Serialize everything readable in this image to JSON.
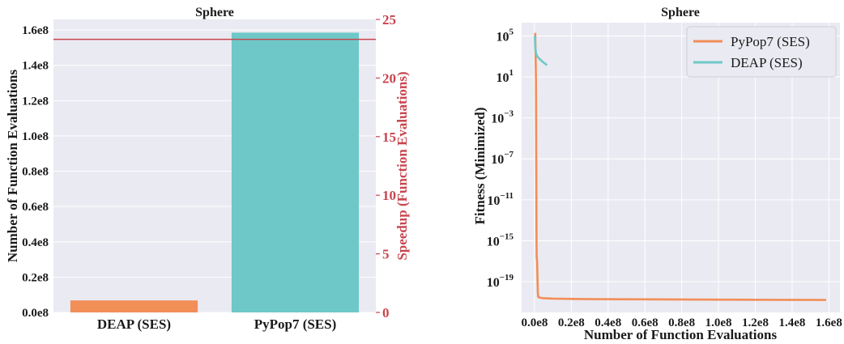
{
  "colors": {
    "plot_bg": "#eaeaf2",
    "grid": "#ffffff",
    "pypop7": "#f28e58",
    "deap": "#6fc8c8",
    "speedup": "#c8454e",
    "text": "#1a1a1a"
  },
  "chart_data": [
    {
      "type": "bar",
      "title": "Sphere",
      "categories": [
        "DEAP (SES)",
        "PyPop7 (SES)"
      ],
      "values": [
        6800000.0,
        158500000.0
      ],
      "bar_colors": [
        "#f28e58",
        "#6fc8c8"
      ],
      "ylabel": "Number of Function Evaluations",
      "ylim": [
        0,
        166000000.0
      ],
      "yticks": [
        0,
        20000000.0,
        40000000.0,
        60000000.0,
        80000000.0,
        100000000.0,
        120000000.0,
        140000000.0,
        160000000.0
      ],
      "ytick_labels": [
        "0.0e8",
        "0.2e8",
        "0.4e8",
        "0.6e8",
        "0.8e8",
        "1.0e8",
        "1.2e8",
        "1.4e8",
        "1.6e8"
      ],
      "secondary_axis": {
        "label": "Speedup (Function Evaluations)",
        "ylim": [
          0,
          25
        ],
        "ticks": [
          0,
          5,
          10,
          15,
          20,
          25
        ],
        "tick_labels": [
          "0",
          "5",
          "10",
          "15",
          "20",
          "25"
        ],
        "speedup_value": 23.3
      },
      "grid": true
    },
    {
      "type": "line",
      "title": "Sphere",
      "xlabel": "Number of Function Evaluations",
      "ylabel": "Fitness (Minimized)",
      "xlim": [
        -7000000.0,
        166000000.0
      ],
      "xticks": [
        0,
        20000000.0,
        40000000.0,
        60000000.0,
        80000000.0,
        100000000.0,
        120000000.0,
        140000000.0,
        160000000.0
      ],
      "xtick_labels": [
        "0.0e8",
        "0.2e8",
        "0.4e8",
        "0.6e8",
        "0.8e8",
        "1.0e8",
        "1.2e8",
        "1.4e8",
        "1.6e8"
      ],
      "yscale": "log",
      "ylim_log10": [
        -22,
        6.3
      ],
      "yticks_log10": [
        5,
        1,
        -3,
        -7,
        -11,
        -15,
        -19
      ],
      "ytick_labels": [
        {
          "base": "10",
          "exp": "5"
        },
        {
          "base": "10",
          "exp": "1"
        },
        {
          "base": "10",
          "exp": "−3"
        },
        {
          "base": "10",
          "exp": "−7"
        },
        {
          "base": "10",
          "exp": "−11"
        },
        {
          "base": "10",
          "exp": "−15"
        },
        {
          "base": "10",
          "exp": "−19"
        }
      ],
      "legend": {
        "placement": "top-right",
        "entries": [
          "PyPop7 (SES)",
          "DEAP (SES)"
        ]
      },
      "grid": true,
      "series": [
        {
          "name": "PyPop7 (SES)",
          "color": "#f28e58",
          "points": [
            [
              400000.0,
              5.3
            ],
            [
              600000.0,
              3.0
            ],
            [
              800000.0,
              0.5
            ],
            [
              900000.0,
              -5.0
            ],
            [
              1000000.0,
              -10.0
            ],
            [
              1100000.0,
              -15.0
            ],
            [
              1200000.0,
              -16.7
            ],
            [
              1400000.0,
              -16.9
            ],
            [
              1600000.0,
              -18.5
            ],
            [
              1800000.0,
              -20.0
            ],
            [
              2000000.0,
              -20.5
            ],
            [
              4000000.0,
              -20.6
            ],
            [
              10000000.0,
              -20.65
            ],
            [
              30000000.0,
              -20.7
            ],
            [
              60000000.0,
              -20.72
            ],
            [
              100000000.0,
              -20.75
            ],
            [
              130000000.0,
              -20.77
            ],
            [
              158500000.0,
              -20.78
            ]
          ]
        },
        {
          "name": "DEAP (SES)",
          "color": "#6fc8c8",
          "points": [
            [
              200000.0,
              5.0
            ],
            [
              400000.0,
              4.0
            ],
            [
              800000.0,
              3.3
            ],
            [
              1500000.0,
              3.0
            ],
            [
              3000000.0,
              2.7
            ],
            [
              5000000.0,
              2.4
            ],
            [
              6800000.0,
              2.15
            ]
          ]
        }
      ]
    }
  ]
}
